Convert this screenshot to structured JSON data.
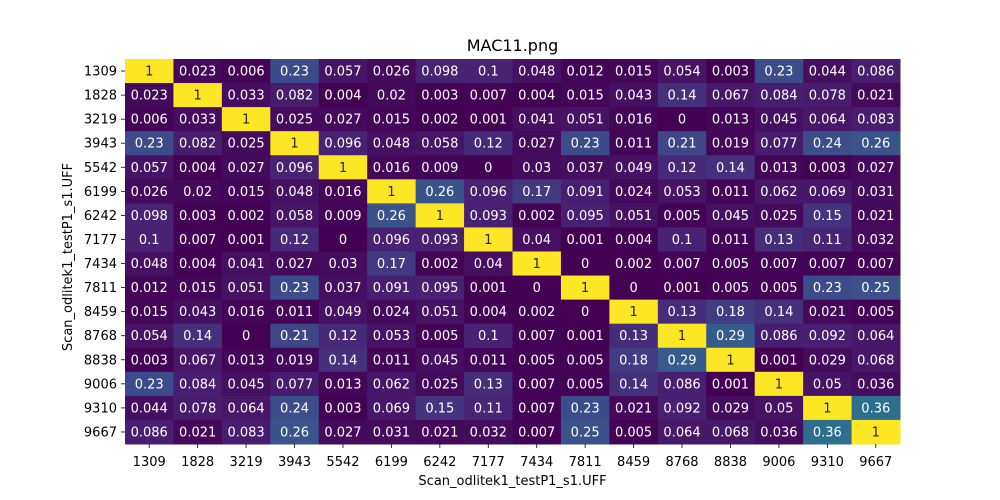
{
  "chart_data": {
    "type": "heatmap",
    "title": "MAC11.png",
    "xlabel": "Scan_odlitek1_testP1_s1.UFF",
    "ylabel": "Scan_odlitek1_testP1_s1.UFF",
    "colormap": "viridis",
    "range": [
      0,
      1
    ],
    "x_labels": [
      "1309",
      "1828",
      "3219",
      "3943",
      "5542",
      "6199",
      "6242",
      "7177",
      "7434",
      "7811",
      "8459",
      "8768",
      "8838",
      "9006",
      "9310",
      "9667"
    ],
    "y_labels": [
      "1309",
      "1828",
      "3219",
      "3943",
      "5542",
      "6199",
      "6242",
      "7177",
      "7434",
      "7811",
      "8459",
      "8768",
      "8838",
      "9006",
      "9310",
      "9667"
    ],
    "values": [
      [
        1,
        0.023,
        0.006,
        0.23,
        0.057,
        0.026,
        0.098,
        0.1,
        0.048,
        0.012,
        0.015,
        0.054,
        0.003,
        0.23,
        0.044,
        0.086
      ],
      [
        0.023,
        1,
        0.033,
        0.082,
        0.004,
        0.02,
        0.003,
        0.007,
        0.004,
        0.015,
        0.043,
        0.14,
        0.067,
        0.084,
        0.078,
        0.021
      ],
      [
        0.006,
        0.033,
        1,
        0.025,
        0.027,
        0.015,
        0.002,
        0.001,
        0.041,
        0.051,
        0.016,
        0,
        0.013,
        0.045,
        0.064,
        0.083
      ],
      [
        0.23,
        0.082,
        0.025,
        1,
        0.096,
        0.048,
        0.058,
        0.12,
        0.027,
        0.23,
        0.011,
        0.21,
        0.019,
        0.077,
        0.24,
        0.26
      ],
      [
        0.057,
        0.004,
        0.027,
        0.096,
        1,
        0.016,
        0.009,
        0,
        0.03,
        0.037,
        0.049,
        0.12,
        0.14,
        0.013,
        0.003,
        0.027
      ],
      [
        0.026,
        0.02,
        0.015,
        0.048,
        0.016,
        1,
        0.26,
        0.096,
        0.17,
        0.091,
        0.024,
        0.053,
        0.011,
        0.062,
        0.069,
        0.031
      ],
      [
        0.098,
        0.003,
        0.002,
        0.058,
        0.009,
        0.26,
        1,
        0.093,
        0.002,
        0.095,
        0.051,
        0.005,
        0.045,
        0.025,
        0.15,
        0.021
      ],
      [
        0.1,
        0.007,
        0.001,
        0.12,
        0,
        0.096,
        0.093,
        1,
        0.04,
        0.001,
        0.004,
        0.1,
        0.011,
        0.13,
        0.11,
        0.032
      ],
      [
        0.048,
        0.004,
        0.041,
        0.027,
        0.03,
        0.17,
        0.002,
        0.04,
        1,
        0,
        0.002,
        0.007,
        0.005,
        0.007,
        0.007,
        0.007
      ],
      [
        0.012,
        0.015,
        0.051,
        0.23,
        0.037,
        0.091,
        0.095,
        0.001,
        0,
        1,
        0,
        0.001,
        0.005,
        0.005,
        0.23,
        0.25
      ],
      [
        0.015,
        0.043,
        0.016,
        0.011,
        0.049,
        0.024,
        0.051,
        0.004,
        0.002,
        0,
        1,
        0.13,
        0.18,
        0.14,
        0.021,
        0.005
      ],
      [
        0.054,
        0.14,
        0,
        0.21,
        0.12,
        0.053,
        0.005,
        0.1,
        0.007,
        0.001,
        0.13,
        1,
        0.29,
        0.086,
        0.092,
        0.064
      ],
      [
        0.003,
        0.067,
        0.013,
        0.019,
        0.14,
        0.011,
        0.045,
        0.011,
        0.005,
        0.005,
        0.18,
        0.29,
        1,
        0.001,
        0.029,
        0.068
      ],
      [
        0.23,
        0.084,
        0.045,
        0.077,
        0.013,
        0.062,
        0.025,
        0.13,
        0.007,
        0.005,
        0.14,
        0.086,
        0.001,
        1,
        0.05,
        0.036
      ],
      [
        0.044,
        0.078,
        0.064,
        0.24,
        0.003,
        0.069,
        0.15,
        0.11,
        0.007,
        0.23,
        0.021,
        0.092,
        0.029,
        0.05,
        1,
        0.36
      ],
      [
        0.086,
        0.021,
        0.083,
        0.26,
        0.027,
        0.031,
        0.021,
        0.032,
        0.007,
        0.25,
        0.005,
        0.064,
        0.068,
        0.036,
        0.36,
        1
      ]
    ]
  }
}
